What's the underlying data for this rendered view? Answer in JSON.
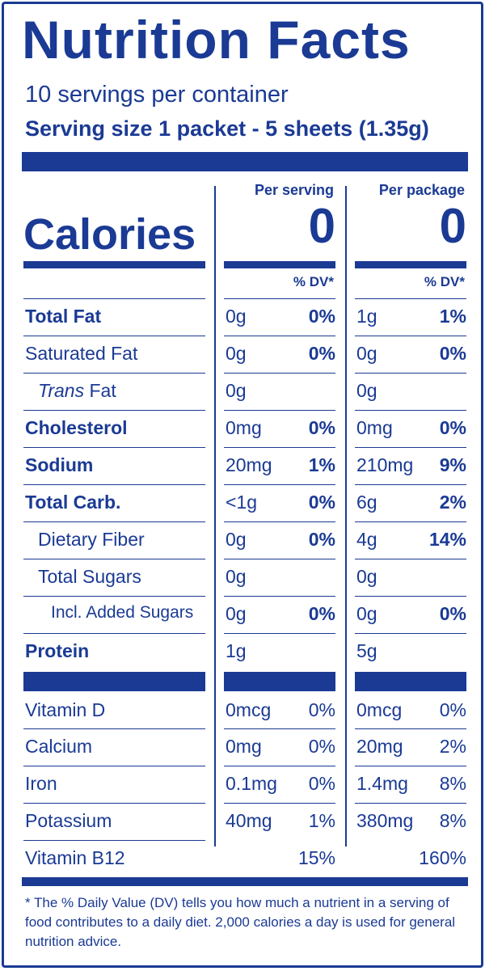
{
  "title": "Nutrition Facts",
  "servings_per_container": "10 servings per container",
  "serving_size": "Serving size 1 packet - 5 sheets (1.35g)",
  "col_per_serving": "Per serving",
  "col_per_package": "Per package",
  "calories_label": "Calories",
  "calories_per_serving": "0",
  "calories_per_package": "0",
  "dv_header": "% DV*",
  "nutrients": [
    {
      "name": "Total Fat",
      "serv_amt": "0g",
      "serv_dv": "0%",
      "pkg_amt": "1g",
      "pkg_dv": "1%"
    },
    {
      "name": "Saturated Fat",
      "serv_amt": "0g",
      "serv_dv": "0%",
      "pkg_amt": "0g",
      "pkg_dv": "0%"
    },
    {
      "name_italic": "Trans",
      "name_rest": " Fat",
      "serv_amt": "0g",
      "serv_dv": "",
      "pkg_amt": "0g",
      "pkg_dv": ""
    },
    {
      "name": "Cholesterol",
      "serv_amt": "0mg",
      "serv_dv": "0%",
      "pkg_amt": "0mg",
      "pkg_dv": "0%"
    },
    {
      "name": "Sodium",
      "serv_amt": "20mg",
      "serv_dv": "1%",
      "pkg_amt": "210mg",
      "pkg_dv": "9%"
    },
    {
      "name": "Total Carb.",
      "serv_amt": "<1g",
      "serv_dv": "0%",
      "pkg_amt": "6g",
      "pkg_dv": "2%"
    },
    {
      "name": "Dietary Fiber",
      "serv_amt": "0g",
      "serv_dv": "0%",
      "pkg_amt": "4g",
      "pkg_dv": "14%"
    },
    {
      "name": "Total Sugars",
      "serv_amt": "0g",
      "serv_dv": "",
      "pkg_amt": "0g",
      "pkg_dv": ""
    },
    {
      "name": "Incl. Added Sugars",
      "serv_amt": "0g",
      "serv_dv": "0%",
      "pkg_amt": "0g",
      "pkg_dv": "0%"
    },
    {
      "name": "Protein",
      "serv_amt": "1g",
      "serv_dv": "",
      "pkg_amt": "5g",
      "pkg_dv": ""
    }
  ],
  "vitamins": [
    {
      "name": "Vitamin D",
      "serv_amt": "0mcg",
      "serv_dv": "0%",
      "pkg_amt": "0mcg",
      "pkg_dv": "0%"
    },
    {
      "name": "Calcium",
      "serv_amt": "0mg",
      "serv_dv": "0%",
      "pkg_amt": "20mg",
      "pkg_dv": "2%"
    },
    {
      "name": "Iron",
      "serv_amt": "0.1mg",
      "serv_dv": "0%",
      "pkg_amt": "1.4mg",
      "pkg_dv": "8%"
    },
    {
      "name": "Potassium",
      "serv_amt": "40mg",
      "serv_dv": "1%",
      "pkg_amt": "380mg",
      "pkg_dv": "8%"
    },
    {
      "name": "Vitamin B12",
      "serv_amt": "",
      "serv_dv": "15%",
      "pkg_amt": "",
      "pkg_dv": "160%"
    }
  ],
  "footnote": "* The % Daily Value (DV) tells you how much a nutrient in a serving of food contributes to a daily diet. 2,000 calories a day is used for general nutrition advice.",
  "colors": {
    "ink": "#1a3a94",
    "background": "#ffffff"
  }
}
